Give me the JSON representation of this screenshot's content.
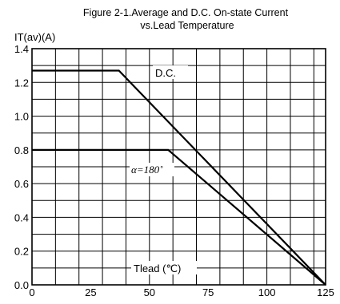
{
  "chart_data": {
    "type": "line",
    "title_line1": "Figure 2-1.Average and D.C. On-state Current",
    "title_line2": "vs.Lead Temperature",
    "ylabel": "IT(av)(A)",
    "xlabel": "Tlead (℃)",
    "xlim": [
      0,
      125
    ],
    "ylim": [
      0.0,
      1.4
    ],
    "x_ticks": [
      0,
      25,
      50,
      75,
      100,
      125
    ],
    "x_tick_labels": [
      "0",
      "25",
      "50",
      "75",
      "100",
      "125"
    ],
    "y_ticks": [
      0.0,
      0.2,
      0.4,
      0.6,
      0.8,
      1.0,
      1.2,
      1.4
    ],
    "y_tick_labels": [
      "0.0",
      "0.2",
      "0.4",
      "0.6",
      "0.8",
      "1.0",
      "1.2",
      "1.4"
    ],
    "x_grid_step": 10,
    "y_grid_step": 0.1,
    "grid": true,
    "series": [
      {
        "name": "D.C.",
        "x": [
          0,
          37,
          125
        ],
        "y": [
          1.27,
          1.27,
          0.0
        ]
      },
      {
        "name": "α=180˚",
        "x": [
          0,
          58,
          125
        ],
        "y": [
          0.8,
          0.8,
          0.0
        ]
      }
    ]
  }
}
